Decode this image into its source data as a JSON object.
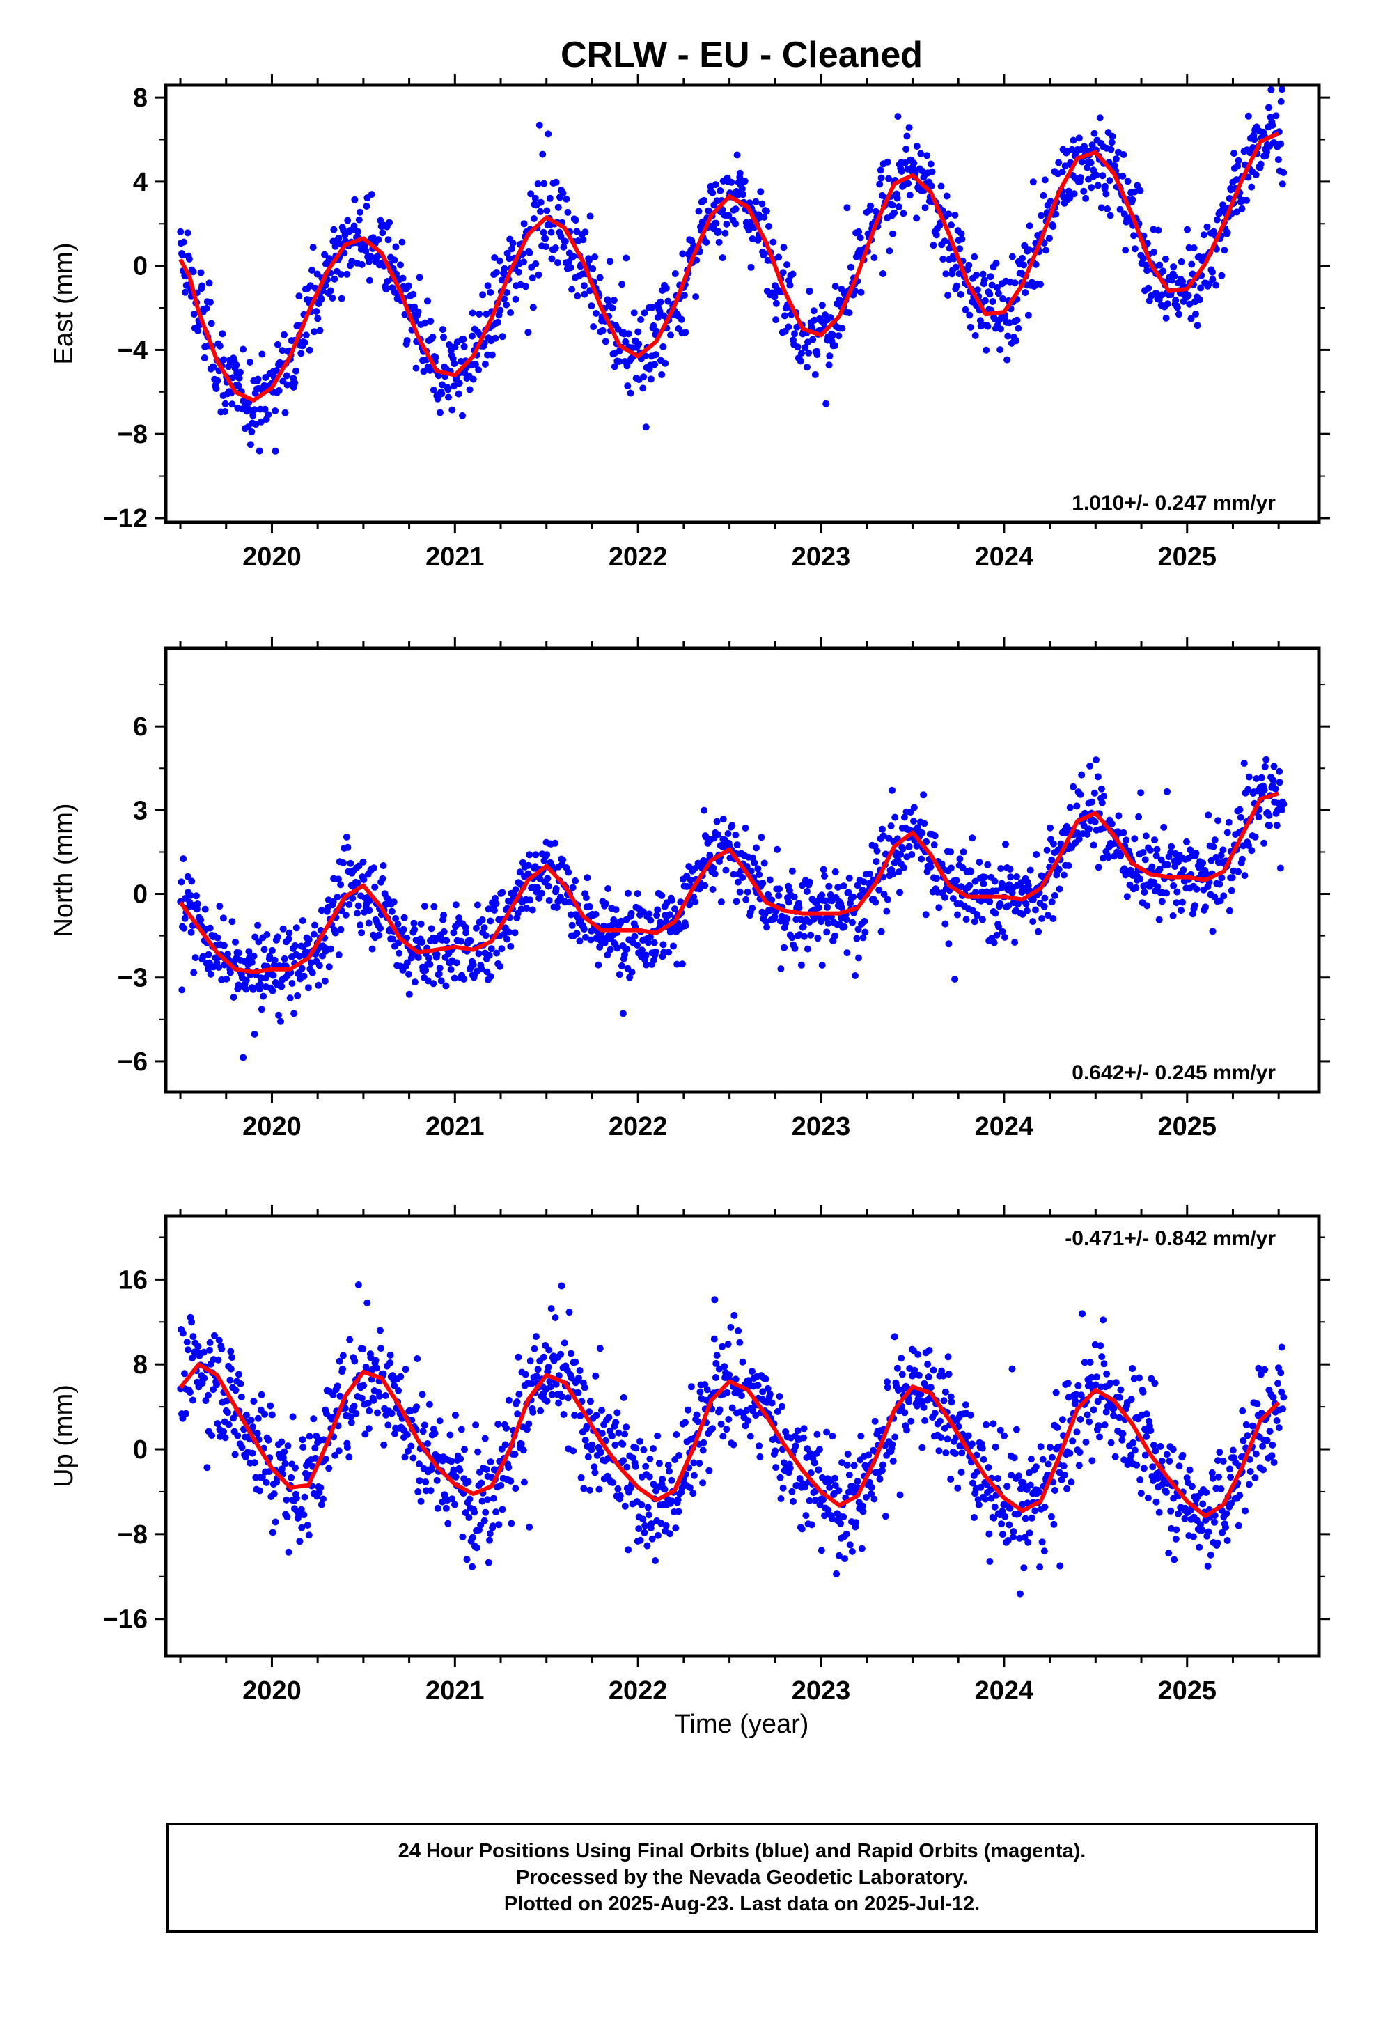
{
  "title": "CRLW  - EU - Cleaned",
  "footer": {
    "line1": "24 Hour Positions Using Final Orbits (blue) and Rapid Orbits (magenta).",
    "line2": "Processed by the Nevada Geodetic Laboratory.",
    "line3": "Plotted on 2025-Aug-23. Last data on 2025-Jul-12."
  },
  "colors": {
    "points": "#0000ff",
    "fit": "#ff0000",
    "frame": "#000000"
  },
  "chart_data": [
    {
      "type": "scatter",
      "ylabel": "East (mm)",
      "xlabel": "",
      "rate_label": "1.010+/- 0.247 mm/yr",
      "rate_position": "bottom-right",
      "xlim": [
        2019.42,
        2025.72
      ],
      "ylim": [
        -12.2,
        8.6
      ],
      "x_ticks": [
        2020,
        2021,
        2022,
        2023,
        2024,
        2025
      ],
      "y_ticks": [
        8,
        4,
        0,
        -4,
        -8,
        -12
      ],
      "series": [
        {
          "type": "scatter",
          "x": [
            2019.5,
            2019.55,
            2019.6,
            2019.7,
            2019.8,
            2019.9,
            2020.0,
            2020.1,
            2020.2,
            2020.3,
            2020.4,
            2020.5,
            2020.6,
            2020.7,
            2020.8,
            2020.9,
            2021.0,
            2021.1,
            2021.2,
            2021.3,
            2021.4,
            2021.5,
            2021.6,
            2021.7,
            2021.8,
            2021.9,
            2022.0,
            2022.1,
            2022.2,
            2022.3,
            2022.4,
            2022.5,
            2022.6,
            2022.7,
            2022.8,
            2022.9,
            2023.0,
            2023.1,
            2023.2,
            2023.3,
            2023.4,
            2023.5,
            2023.6,
            2023.7,
            2023.8,
            2023.9,
            2024.0,
            2024.1,
            2024.2,
            2024.3,
            2024.4,
            2024.5,
            2024.6,
            2024.7,
            2024.8,
            2024.9,
            2025.0,
            2025.1,
            2025.2,
            2025.3,
            2025.4,
            2025.5
          ],
          "y": [
            0.3,
            -0.5,
            -2.2,
            -4.5,
            -6.0,
            -6.4,
            -5.8,
            -4.3,
            -2.2,
            -0.3,
            1.0,
            1.3,
            0.6,
            -1.2,
            -3.4,
            -5.0,
            -5.2,
            -4.3,
            -2.5,
            -0.3,
            1.5,
            2.3,
            1.8,
            0.2,
            -2.0,
            -3.8,
            -4.3,
            -3.6,
            -1.9,
            0.4,
            2.4,
            3.3,
            2.8,
            1.1,
            -1.2,
            -3.0,
            -3.3,
            -2.4,
            -0.4,
            2.0,
            3.9,
            4.3,
            3.5,
            1.5,
            -0.8,
            -2.3,
            -2.2,
            -0.9,
            1.2,
            3.5,
            5.1,
            5.4,
            4.4,
            2.4,
            0.1,
            -1.2,
            -1.1,
            0.1,
            2.0,
            4.1,
            5.9,
            6.3
          ]
        },
        {
          "type": "line",
          "name": "",
          "x": [
            2019.5,
            2019.55,
            2019.6,
            2019.7,
            2019.8,
            2019.9,
            2020.0,
            2020.1,
            2020.2,
            2020.3,
            2020.4,
            2020.5,
            2020.6,
            2020.7,
            2020.8,
            2020.9,
            2021.0,
            2021.1,
            2021.2,
            2021.3,
            2021.4,
            2021.5,
            2021.6,
            2021.7,
            2021.8,
            2021.9,
            2022.0,
            2022.1,
            2022.2,
            2022.3,
            2022.4,
            2022.5,
            2022.6,
            2022.7,
            2022.8,
            2022.9,
            2023.0,
            2023.1,
            2023.2,
            2023.3,
            2023.4,
            2023.5,
            2023.6,
            2023.7,
            2023.8,
            2023.9,
            2024.0,
            2024.1,
            2024.2,
            2024.3,
            2024.4,
            2024.5,
            2024.6,
            2024.7,
            2024.8,
            2024.9,
            2025.0,
            2025.1,
            2025.2,
            2025.3,
            2025.4,
            2025.5
          ],
          "y": [
            0.3,
            -0.5,
            -2.2,
            -4.5,
            -6.0,
            -6.4,
            -5.8,
            -4.3,
            -2.2,
            -0.3,
            1.0,
            1.3,
            0.6,
            -1.2,
            -3.4,
            -5.0,
            -5.2,
            -4.3,
            -2.5,
            -0.3,
            1.5,
            2.3,
            1.8,
            0.2,
            -2.0,
            -3.8,
            -4.3,
            -3.6,
            -1.9,
            0.4,
            2.4,
            3.3,
            2.8,
            1.1,
            -1.2,
            -3.0,
            -3.3,
            -2.4,
            -0.4,
            2.0,
            3.9,
            4.3,
            3.5,
            1.5,
            -0.8,
            -2.3,
            -2.2,
            -0.9,
            1.2,
            3.5,
            5.1,
            5.4,
            4.4,
            2.4,
            0.1,
            -1.2,
            -1.1,
            0.1,
            2.0,
            4.1,
            5.9,
            6.3
          ]
        }
      ]
    },
    {
      "type": "scatter",
      "ylabel": "North (mm)",
      "xlabel": "",
      "rate_label": "0.642+/- 0.245 mm/yr",
      "rate_position": "bottom-right",
      "xlim": [
        2019.42,
        2025.72
      ],
      "ylim": [
        -7.1,
        8.8
      ],
      "x_ticks": [
        2020,
        2021,
        2022,
        2023,
        2024,
        2025
      ],
      "y_ticks": [
        6,
        3,
        0,
        -3,
        -6
      ],
      "series": [
        {
          "type": "scatter",
          "x": [
            2019.5,
            2019.6,
            2019.7,
            2019.8,
            2019.9,
            2020.0,
            2020.1,
            2020.2,
            2020.3,
            2020.4,
            2020.5,
            2020.6,
            2020.7,
            2020.8,
            2020.9,
            2021.0,
            2021.1,
            2021.2,
            2021.3,
            2021.4,
            2021.5,
            2021.6,
            2021.7,
            2021.8,
            2021.9,
            2022.0,
            2022.1,
            2022.2,
            2022.3,
            2022.4,
            2022.5,
            2022.6,
            2022.7,
            2022.8,
            2022.9,
            2023.0,
            2023.1,
            2023.2,
            2023.3,
            2023.4,
            2023.5,
            2023.6,
            2023.7,
            2023.8,
            2023.9,
            2024.0,
            2024.1,
            2024.2,
            2024.3,
            2024.4,
            2024.5,
            2024.6,
            2024.7,
            2024.8,
            2024.9,
            2025.0,
            2025.1,
            2025.2,
            2025.3,
            2025.4,
            2025.5
          ],
          "y": [
            -0.3,
            -1.2,
            -2.1,
            -2.7,
            -2.8,
            -2.7,
            -2.7,
            -2.3,
            -1.2,
            -0.1,
            0.3,
            -0.5,
            -1.6,
            -2.1,
            -2.0,
            -1.9,
            -2.0,
            -1.7,
            -0.6,
            0.5,
            1.0,
            0.3,
            -0.8,
            -1.3,
            -1.3,
            -1.3,
            -1.4,
            -1.0,
            0.2,
            1.2,
            1.6,
            0.7,
            -0.3,
            -0.6,
            -0.7,
            -0.7,
            -0.7,
            -0.5,
            0.4,
            1.7,
            2.2,
            1.4,
            0.3,
            -0.1,
            -0.1,
            -0.1,
            -0.2,
            0.2,
            1.3,
            2.6,
            2.9,
            2.1,
            1.1,
            0.7,
            0.6,
            0.6,
            0.5,
            0.8,
            2.1,
            3.4,
            3.6
          ]
        },
        {
          "type": "line",
          "name": "",
          "x": [
            2019.5,
            2019.6,
            2019.7,
            2019.8,
            2019.9,
            2020.0,
            2020.1,
            2020.2,
            2020.3,
            2020.4,
            2020.5,
            2020.6,
            2020.7,
            2020.8,
            2020.9,
            2021.0,
            2021.1,
            2021.2,
            2021.3,
            2021.4,
            2021.5,
            2021.6,
            2021.7,
            2021.8,
            2021.9,
            2022.0,
            2022.1,
            2022.2,
            2022.3,
            2022.4,
            2022.5,
            2022.6,
            2022.7,
            2022.8,
            2022.9,
            2023.0,
            2023.1,
            2023.2,
            2023.3,
            2023.4,
            2023.5,
            2023.6,
            2023.7,
            2023.8,
            2023.9,
            2024.0,
            2024.1,
            2024.2,
            2024.3,
            2024.4,
            2024.5,
            2024.6,
            2024.7,
            2024.8,
            2024.9,
            2025.0,
            2025.1,
            2025.2,
            2025.3,
            2025.4,
            2025.5
          ],
          "y": [
            -0.3,
            -1.2,
            -2.1,
            -2.7,
            -2.8,
            -2.7,
            -2.7,
            -2.3,
            -1.2,
            -0.1,
            0.3,
            -0.5,
            -1.6,
            -2.1,
            -2.0,
            -1.9,
            -2.0,
            -1.7,
            -0.6,
            0.5,
            1.0,
            0.3,
            -0.8,
            -1.3,
            -1.3,
            -1.3,
            -1.4,
            -1.0,
            0.2,
            1.2,
            1.6,
            0.7,
            -0.3,
            -0.6,
            -0.7,
            -0.7,
            -0.7,
            -0.5,
            0.4,
            1.7,
            2.2,
            1.4,
            0.3,
            -0.1,
            -0.1,
            -0.1,
            -0.2,
            0.2,
            1.3,
            2.6,
            2.9,
            2.1,
            1.1,
            0.7,
            0.6,
            0.6,
            0.5,
            0.8,
            2.1,
            3.4,
            3.6
          ]
        }
      ]
    },
    {
      "type": "scatter",
      "ylabel": "Up (mm)",
      "xlabel": "Time (year)",
      "rate_label": "-0.471+/- 0.842 mm/yr",
      "rate_position": "top-right",
      "xlim": [
        2019.42,
        2025.72
      ],
      "ylim": [
        -19.5,
        22.0
      ],
      "x_ticks": [
        2020,
        2021,
        2022,
        2023,
        2024,
        2025
      ],
      "y_ticks": [
        16,
        8,
        0,
        -8,
        -16
      ],
      "series": [
        {
          "type": "scatter",
          "x": [
            2019.5,
            2019.6,
            2019.7,
            2019.8,
            2019.9,
            2020.0,
            2020.1,
            2020.2,
            2020.3,
            2020.4,
            2020.5,
            2020.6,
            2020.7,
            2020.8,
            2020.9,
            2021.0,
            2021.1,
            2021.2,
            2021.3,
            2021.4,
            2021.5,
            2021.6,
            2021.7,
            2021.8,
            2021.9,
            2022.0,
            2022.1,
            2022.2,
            2022.3,
            2022.4,
            2022.5,
            2022.6,
            2022.7,
            2022.8,
            2022.9,
            2023.0,
            2023.1,
            2023.2,
            2023.3,
            2023.4,
            2023.5,
            2023.6,
            2023.7,
            2023.8,
            2023.9,
            2024.0,
            2024.1,
            2024.2,
            2024.3,
            2024.4,
            2024.5,
            2024.6,
            2024.7,
            2024.8,
            2024.9,
            2025.0,
            2025.1,
            2025.2,
            2025.3,
            2025.4,
            2025.5
          ],
          "y": [
            5.8,
            8.0,
            7.0,
            4.0,
            1.0,
            -1.8,
            -3.6,
            -3.4,
            0.5,
            5.0,
            7.3,
            6.7,
            4.0,
            0.8,
            -1.6,
            -3.3,
            -4.2,
            -3.5,
            0.0,
            4.7,
            7.0,
            6.3,
            3.6,
            0.7,
            -1.7,
            -3.6,
            -4.8,
            -3.9,
            0.0,
            4.6,
            6.4,
            5.6,
            3.2,
            0.4,
            -2.0,
            -4.0,
            -5.3,
            -4.4,
            -0.8,
            3.7,
            5.9,
            5.3,
            2.8,
            0.0,
            -2.6,
            -4.6,
            -5.8,
            -4.9,
            -0.8,
            3.8,
            5.6,
            4.6,
            2.4,
            -0.5,
            -2.8,
            -4.9,
            -6.3,
            -5.2,
            -1.7,
            2.7,
            4.4
          ]
        },
        {
          "type": "line",
          "name": "",
          "x": [
            2019.5,
            2019.6,
            2019.7,
            2019.8,
            2019.9,
            2020.0,
            2020.1,
            2020.2,
            2020.3,
            2020.4,
            2020.5,
            2020.6,
            2020.7,
            2020.8,
            2020.9,
            2021.0,
            2021.1,
            2021.2,
            2021.3,
            2021.4,
            2021.5,
            2021.6,
            2021.7,
            2021.8,
            2021.9,
            2022.0,
            2022.1,
            2022.2,
            2022.3,
            2022.4,
            2022.5,
            2022.6,
            2022.7,
            2022.8,
            2022.9,
            2023.0,
            2023.1,
            2023.2,
            2023.3,
            2023.4,
            2023.5,
            2023.6,
            2023.7,
            2023.8,
            2023.9,
            2024.0,
            2024.1,
            2024.2,
            2024.3,
            2024.4,
            2024.5,
            2024.6,
            2024.7,
            2024.8,
            2024.9,
            2025.0,
            2025.1,
            2025.2,
            2025.3,
            2025.4,
            2025.5
          ],
          "y": [
            5.8,
            8.0,
            7.0,
            4.0,
            1.0,
            -1.8,
            -3.6,
            -3.4,
            0.5,
            5.0,
            7.3,
            6.7,
            4.0,
            0.8,
            -1.6,
            -3.3,
            -4.2,
            -3.5,
            0.0,
            4.7,
            7.0,
            6.3,
            3.6,
            0.7,
            -1.7,
            -3.6,
            -4.8,
            -3.9,
            0.0,
            4.6,
            6.4,
            5.6,
            3.2,
            0.4,
            -2.0,
            -4.0,
            -5.3,
            -4.4,
            -0.8,
            3.7,
            5.9,
            5.3,
            2.8,
            0.0,
            -2.6,
            -4.6,
            -5.8,
            -4.9,
            -0.8,
            3.8,
            5.6,
            4.6,
            2.4,
            -0.5,
            -2.8,
            -4.9,
            -6.3,
            -5.2,
            -1.7,
            2.7,
            4.4
          ]
        }
      ]
    }
  ]
}
